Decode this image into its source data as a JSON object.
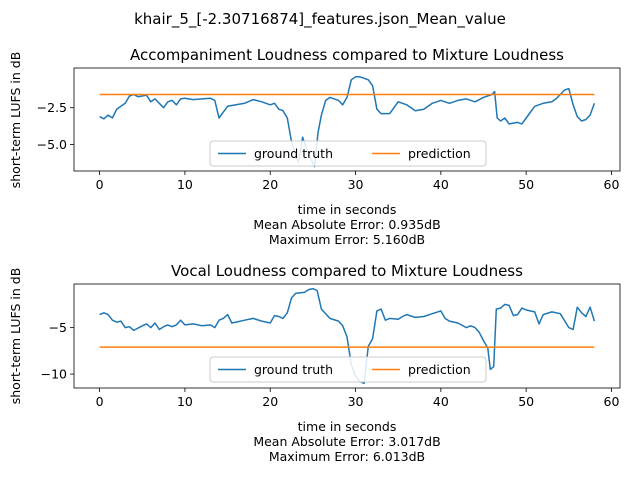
{
  "figure": {
    "suptitle": "khair_5_[-2.30716874]_features.json_Mean_value"
  },
  "chart_data": [
    {
      "type": "line",
      "title": "Accompaniment Loudness compared to Mixture Loudness",
      "xlabel": "time in seconds",
      "ylabel": "short-term LUFS in dB",
      "metrics": [
        "Mean Absolute Error: 0.935dB",
        "Maximum Error: 5.160dB"
      ],
      "xlim": [
        -3,
        61
      ],
      "ylim": [
        -6.8,
        0.2
      ],
      "xticks": [
        0,
        10,
        20,
        30,
        40,
        50,
        60
      ],
      "yticks": [
        -2.5,
        -5.0
      ],
      "ytick_labels": [
        "−2.5",
        "−5.0"
      ],
      "legend_loc": "lower-center",
      "series": [
        {
          "name": "ground truth",
          "color": "#1f77b4",
          "points": [
            [
              0,
              -3.1
            ],
            [
              0.5,
              -3.25
            ],
            [
              1,
              -3.0
            ],
            [
              1.5,
              -3.2
            ],
            [
              2,
              -2.6
            ],
            [
              2.5,
              -2.4
            ],
            [
              3,
              -2.2
            ],
            [
              3.5,
              -1.7
            ],
            [
              4,
              -1.6
            ],
            [
              4.5,
              -1.75
            ],
            [
              5,
              -1.7
            ],
            [
              5.5,
              -1.65
            ],
            [
              6,
              -2.1
            ],
            [
              6.5,
              -1.9
            ],
            [
              7,
              -2.2
            ],
            [
              7.5,
              -2.5
            ],
            [
              8,
              -2.1
            ],
            [
              8.5,
              -2.0
            ],
            [
              9,
              -2.3
            ],
            [
              9.5,
              -1.9
            ],
            [
              10,
              -1.85
            ],
            [
              11,
              -1.95
            ],
            [
              12,
              -1.9
            ],
            [
              13,
              -1.85
            ],
            [
              13.5,
              -2.0
            ],
            [
              14,
              -3.2
            ],
            [
              14.5,
              -2.8
            ],
            [
              15,
              -2.4
            ],
            [
              16,
              -2.3
            ],
            [
              17,
              -2.2
            ],
            [
              18,
              -1.95
            ],
            [
              19,
              -2.1
            ],
            [
              20,
              -2.3
            ],
            [
              20.5,
              -2.2
            ],
            [
              21,
              -2.6
            ],
            [
              21.5,
              -2.7
            ],
            [
              22,
              -3.2
            ],
            [
              22.5,
              -4.8
            ],
            [
              23,
              -5.8
            ],
            [
              23.3,
              -6.2
            ],
            [
              23.8,
              -4.5
            ],
            [
              24.3,
              -5.4
            ],
            [
              24.8,
              -6.0
            ],
            [
              25.2,
              -6.5
            ],
            [
              25.6,
              -4.2
            ],
            [
              26,
              -3.0
            ],
            [
              26.5,
              -2.0
            ],
            [
              27,
              -1.8
            ],
            [
              27.5,
              -1.9
            ],
            [
              28,
              -2.0
            ],
            [
              28.5,
              -2.3
            ],
            [
              29,
              -1.8
            ],
            [
              29.5,
              -0.6
            ],
            [
              30,
              -0.4
            ],
            [
              30.5,
              -0.4
            ],
            [
              31,
              -0.5
            ],
            [
              31.5,
              -0.6
            ],
            [
              32,
              -1.0
            ],
            [
              32.5,
              -2.6
            ],
            [
              33,
              -2.9
            ],
            [
              34,
              -2.9
            ],
            [
              35,
              -2.1
            ],
            [
              36,
              -2.3
            ],
            [
              37,
              -2.7
            ],
            [
              38,
              -2.6
            ],
            [
              39,
              -2.2
            ],
            [
              40,
              -2.0
            ],
            [
              41,
              -2.2
            ],
            [
              42,
              -2.0
            ],
            [
              43,
              -1.9
            ],
            [
              44,
              -2.1
            ],
            [
              45,
              -1.8
            ],
            [
              46,
              -1.6
            ],
            [
              46.3,
              -1.4
            ],
            [
              46.6,
              -3.2
            ],
            [
              47,
              -3.4
            ],
            [
              47.5,
              -3.2
            ],
            [
              48,
              -3.6
            ],
            [
              49,
              -3.5
            ],
            [
              49.5,
              -3.6
            ],
            [
              50,
              -3.2
            ],
            [
              51,
              -2.4
            ],
            [
              52,
              -2.2
            ],
            [
              53,
              -2.1
            ],
            [
              53.5,
              -1.9
            ],
            [
              54,
              -1.6
            ],
            [
              54.5,
              -1.3
            ],
            [
              55,
              -1.2
            ],
            [
              55.5,
              -2.3
            ],
            [
              56,
              -3.1
            ],
            [
              56.5,
              -3.4
            ],
            [
              57,
              -3.3
            ],
            [
              57.5,
              -3.0
            ],
            [
              58,
              -2.2
            ]
          ]
        },
        {
          "name": "prediction",
          "color": "#ff7f0e",
          "points": [
            [
              0,
              -1.6
            ],
            [
              58,
              -1.6
            ]
          ]
        }
      ]
    },
    {
      "type": "line",
      "title": "Vocal Loudness compared to Mixture Loudness",
      "xlabel": "time in seconds",
      "ylabel": "short-term LUFS in dB",
      "metrics": [
        "Mean Absolute Error: 3.017dB",
        "Maximum Error: 6.013dB"
      ],
      "xlim": [
        -3,
        61
      ],
      "ylim": [
        -11.5,
        -0.3
      ],
      "xticks": [
        0,
        10,
        20,
        30,
        40,
        50,
        60
      ],
      "yticks": [
        -5,
        -10
      ],
      "ytick_labels": [
        "−5",
        "−10"
      ],
      "legend_loc": "lower-center",
      "series": [
        {
          "name": "ground truth",
          "color": "#1f77b4",
          "points": [
            [
              0,
              -3.6
            ],
            [
              0.5,
              -3.4
            ],
            [
              1,
              -3.6
            ],
            [
              1.5,
              -4.2
            ],
            [
              2,
              -4.4
            ],
            [
              2.5,
              -4.3
            ],
            [
              3,
              -5.0
            ],
            [
              3.5,
              -4.9
            ],
            [
              4,
              -5.3
            ],
            [
              5,
              -4.8
            ],
            [
              5.5,
              -4.6
            ],
            [
              6,
              -5.0
            ],
            [
              6.5,
              -4.5
            ],
            [
              7,
              -5.2
            ],
            [
              7.5,
              -4.9
            ],
            [
              8,
              -4.7
            ],
            [
              8.5,
              -4.9
            ],
            [
              9,
              -4.7
            ],
            [
              9.5,
              -4.2
            ],
            [
              10,
              -4.7
            ],
            [
              11,
              -4.6
            ],
            [
              12,
              -4.8
            ],
            [
              13,
              -4.7
            ],
            [
              13.5,
              -5.0
            ],
            [
              14,
              -4.2
            ],
            [
              14.5,
              -4.0
            ],
            [
              15,
              -3.6
            ],
            [
              15.5,
              -4.5
            ],
            [
              16,
              -4.4
            ],
            [
              17,
              -4.2
            ],
            [
              18,
              -4.0
            ],
            [
              19,
              -4.3
            ],
            [
              20,
              -4.5
            ],
            [
              20.5,
              -3.7
            ],
            [
              21,
              -3.8
            ],
            [
              21.5,
              -4.0
            ],
            [
              22,
              -3.4
            ],
            [
              22.5,
              -1.8
            ],
            [
              23,
              -1.3
            ],
            [
              24,
              -1.2
            ],
            [
              24.5,
              -0.9
            ],
            [
              25,
              -0.8
            ],
            [
              25.5,
              -1.0
            ],
            [
              26,
              -3.0
            ],
            [
              26.5,
              -3.5
            ],
            [
              27,
              -4.0
            ],
            [
              28,
              -4.3
            ],
            [
              28.5,
              -4.8
            ],
            [
              29,
              -6.0
            ],
            [
              29.5,
              -9.0
            ],
            [
              30,
              -10.2
            ],
            [
              30.5,
              -10.8
            ],
            [
              31,
              -11.0
            ],
            [
              31.5,
              -7.0
            ],
            [
              32,
              -6.2
            ],
            [
              32.5,
              -3.2
            ],
            [
              33,
              -3.0
            ],
            [
              33.5,
              -4.2
            ],
            [
              34,
              -4.0
            ],
            [
              35,
              -4.1
            ],
            [
              35.5,
              -3.8
            ],
            [
              36,
              -3.6
            ],
            [
              37,
              -3.9
            ],
            [
              38,
              -3.8
            ],
            [
              39,
              -3.5
            ],
            [
              40,
              -3.2
            ],
            [
              40.5,
              -4.0
            ],
            [
              41,
              -4.3
            ],
            [
              42,
              -4.5
            ],
            [
              43,
              -5.0
            ],
            [
              43.5,
              -4.8
            ],
            [
              44,
              -5.0
            ],
            [
              44.5,
              -5.5
            ],
            [
              45,
              -6.4
            ],
            [
              45.5,
              -7.2
            ],
            [
              45.8,
              -9.5
            ],
            [
              46.2,
              -9.2
            ],
            [
              46.5,
              -3.0
            ],
            [
              47,
              -2.9
            ],
            [
              47.5,
              -2.5
            ],
            [
              48,
              -2.6
            ],
            [
              48.5,
              -3.7
            ],
            [
              49,
              -3.6
            ],
            [
              49.5,
              -2.9
            ],
            [
              50,
              -3.1
            ],
            [
              51,
              -3.3
            ],
            [
              51.5,
              -4.6
            ],
            [
              52,
              -3.6
            ],
            [
              53,
              -3.3
            ],
            [
              54,
              -3.5
            ],
            [
              55,
              -5.0
            ],
            [
              55.5,
              -5.2
            ],
            [
              56,
              -2.8
            ],
            [
              56.5,
              -3.4
            ],
            [
              57,
              -3.8
            ],
            [
              57.5,
              -2.8
            ],
            [
              58,
              -4.3
            ]
          ]
        },
        {
          "name": "prediction",
          "color": "#ff7f0e",
          "points": [
            [
              0,
              -7.1
            ],
            [
              58,
              -7.1
            ]
          ]
        }
      ]
    }
  ]
}
